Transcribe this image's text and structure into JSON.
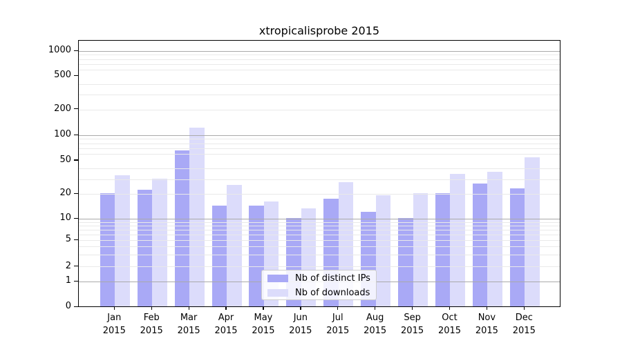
{
  "title": "xtropicalisprobe 2015",
  "chart_data": {
    "type": "bar",
    "title": "xtropicalisprobe 2015",
    "categories": [
      "Jan",
      "Feb",
      "Mar",
      "Apr",
      "May",
      "Jun",
      "Jul",
      "Aug",
      "Sep",
      "Oct",
      "Nov",
      "Dec"
    ],
    "xtick_year": "2015",
    "series": [
      {
        "name": "Nb of distinct IPs",
        "color": "#a9a9f6",
        "values": [
          20,
          22,
          65,
          14,
          14,
          10,
          17,
          12,
          10,
          20,
          26,
          23
        ]
      },
      {
        "name": "Nb of downloads",
        "color": "#dcdcfb",
        "values": [
          33,
          30,
          120,
          25,
          16,
          13,
          27,
          19,
          20,
          34,
          36,
          54
        ]
      }
    ],
    "xlabel": "",
    "ylabel": "",
    "yscale": "log",
    "ylim": [
      0,
      1000
    ],
    "yticks": [
      0,
      1,
      2,
      5,
      10,
      20,
      50,
      100,
      200,
      500,
      1000
    ],
    "ytick_labels": [
      "0",
      "1",
      "2",
      "5",
      "10",
      "20",
      "50",
      "100",
      "200",
      "500",
      "1000"
    ],
    "major_grid_values": [
      1,
      10,
      100,
      1000
    ],
    "minor_grid_values": [
      2,
      3,
      4,
      5,
      6,
      7,
      8,
      9,
      20,
      30,
      40,
      60,
      70,
      80,
      90,
      200,
      300,
      400,
      600,
      700,
      800,
      900
    ],
    "grid": true,
    "legend_position": "lower center"
  },
  "colors": {
    "bar_distinct_ips": "#a9a9f6",
    "bar_downloads": "#dcdcfb",
    "major_grid": "#a9a9a9",
    "minor_grid": "#e9e9e9",
    "axis": "#000000",
    "legend_border": "#cccccc",
    "background": "#ffffff"
  }
}
